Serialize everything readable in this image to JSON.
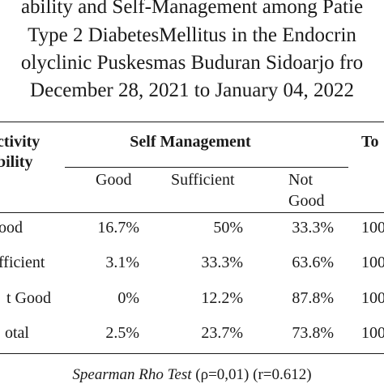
{
  "title": {
    "line1": "ability and Self-Management among Patie",
    "line2": "Type 2 DiabetesMellitus in the Endocrin",
    "line3": "olyclinic Puskesmas Buduran Sidoarjo fro",
    "line4": "December 28, 2021 to January 04, 2022"
  },
  "table": {
    "row_header_line1": "ctivity",
    "row_header_line2": "bility",
    "group_header": "Self Management",
    "total_header": "To",
    "columns": {
      "good": "Good",
      "sufficient": "Sufficient",
      "not_good_line1": "Not",
      "not_good_line2": "Good"
    },
    "rows": [
      {
        "label": "ood",
        "good": "16.7%",
        "sufficient": "50%",
        "not_good": "33.3%",
        "total": "100"
      },
      {
        "label": "fficient",
        "good": "3.1%",
        "sufficient": "33.3%",
        "not_good": "63.6%",
        "total": "100"
      },
      {
        "label": "t Good",
        "good": "0%",
        "sufficient": "12.2%",
        "not_good": "87.8%",
        "total": "100"
      },
      {
        "label": "otal",
        "good": "2.5%",
        "sufficient": "23.7%",
        "not_good": "73.8%",
        "total": "100"
      }
    ]
  },
  "footnote": {
    "test_name": "Spearman Rho Test",
    "stats": "(ρ=0,01) (r=0.612)"
  }
}
